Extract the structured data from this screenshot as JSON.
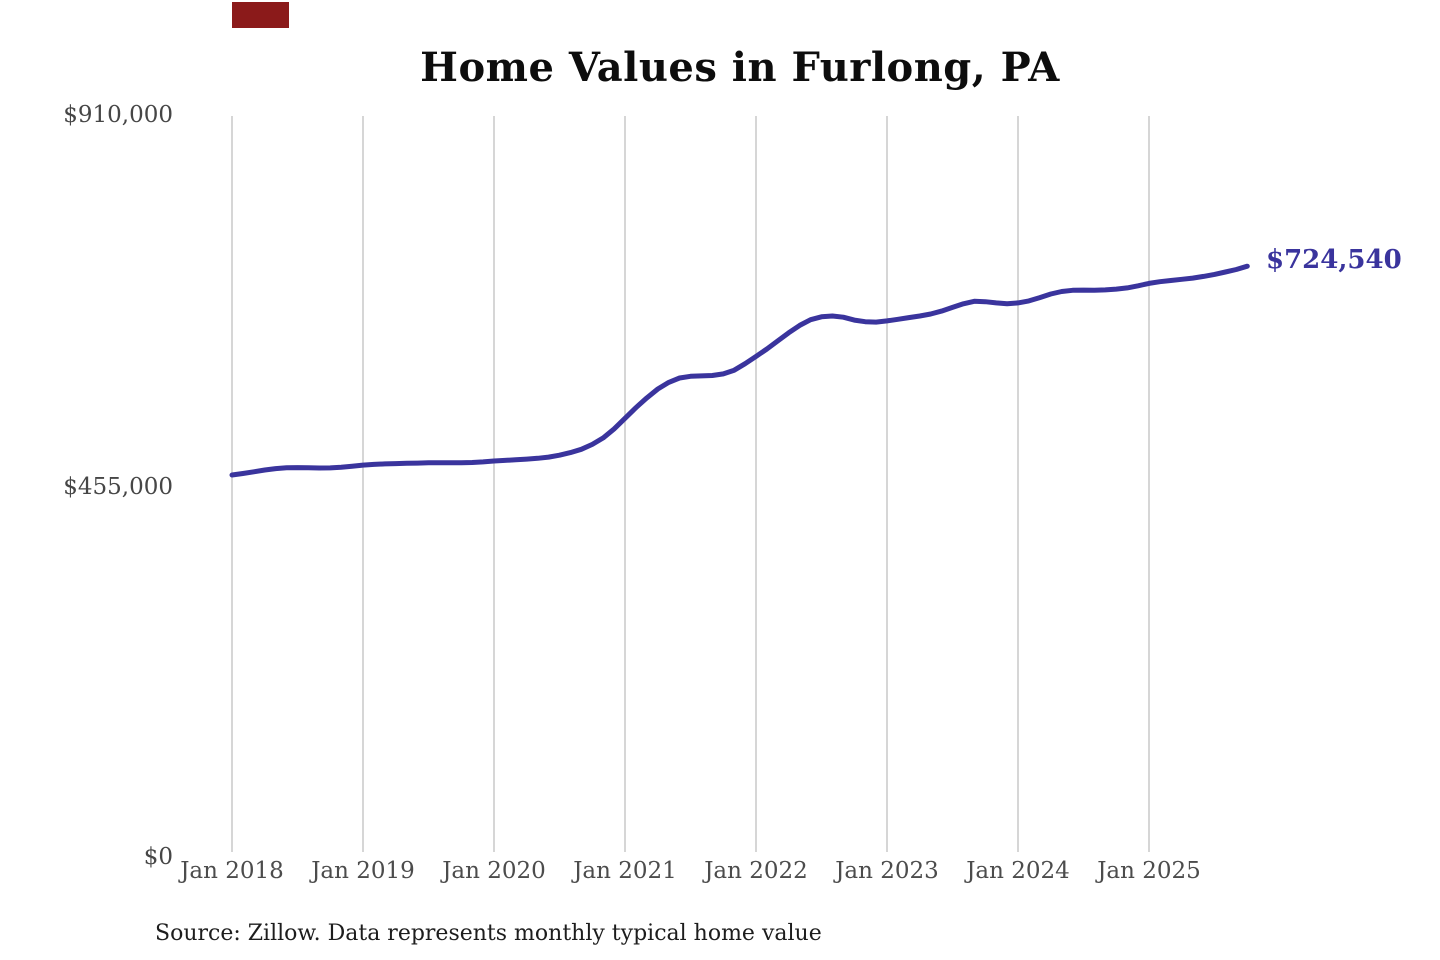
{
  "title": "Home Values in Furlong, PA",
  "end_label": "$724,540",
  "source_note": "Source: Zillow. Data represents monthly typical home value",
  "colors": {
    "line": "#3a349d",
    "end_label": "#3a349d",
    "gridline": "#c9c9c9",
    "artifact_red": "#8b1a1a"
  },
  "y_axis": {
    "labels": [
      "$910,000",
      "$455,000",
      "$0"
    ],
    "max_label": "$910,000",
    "mid_label": "$455,000",
    "min_label": "$0"
  },
  "x_axis": {
    "labels": [
      "Jan 2018",
      "Jan 2019",
      "Jan 2020",
      "Jan 2021",
      "Jan 2022",
      "Jan 2023",
      "Jan 2024",
      "Jan 2025"
    ]
  },
  "chart_data": {
    "type": "line",
    "title": "Home Values in Furlong, PA",
    "xlabel": "",
    "ylabel": "",
    "ylim": [
      0,
      910000
    ],
    "y_tick_labels": [
      "$0",
      "$455,000",
      "$910,000"
    ],
    "y_tick_values": [
      0,
      455000,
      910000
    ],
    "x_tick_labels": [
      "Jan 2018",
      "Jan 2019",
      "Jan 2020",
      "Jan 2021",
      "Jan 2022",
      "Jan 2023",
      "Jan 2024",
      "Jan 2025"
    ],
    "grid": "vertical-only",
    "legend": "none",
    "start_month": "2018-01",
    "cadence": "monthly",
    "end_value": 724540,
    "end_value_label": "$724,540",
    "series": [
      {
        "name": "Typical home value",
        "values": [
          468500,
          470300,
          472400,
          474600,
          476300,
          477300,
          477600,
          477400,
          477100,
          477200,
          478000,
          479300,
          480600,
          481500,
          482100,
          482500,
          482800,
          483100,
          483400,
          483500,
          483400,
          483400,
          483800,
          484600,
          485600,
          486400,
          487200,
          488000,
          489000,
          490500,
          492800,
          496000,
          500000,
          506000,
          514000,
          525000,
          538000,
          551000,
          563000,
          574000,
          582000,
          587500,
          589500,
          590000,
          590500,
          592500,
          597000,
          605000,
          614000,
          623000,
          633000,
          643000,
          652000,
          659000,
          662500,
          663500,
          662000,
          658500,
          656500,
          656000,
          657500,
          659500,
          661500,
          663500,
          666000,
          669500,
          674000,
          678500,
          681500,
          681000,
          679500,
          678500,
          679500,
          682000,
          686000,
          690500,
          693500,
          695000,
          695300,
          695000,
          695500,
          696500,
          698000,
          700500,
          703500,
          705500,
          707000,
          708500,
          710000,
          712000,
          714500,
          717500,
          720500,
          724540
        ]
      }
    ]
  }
}
